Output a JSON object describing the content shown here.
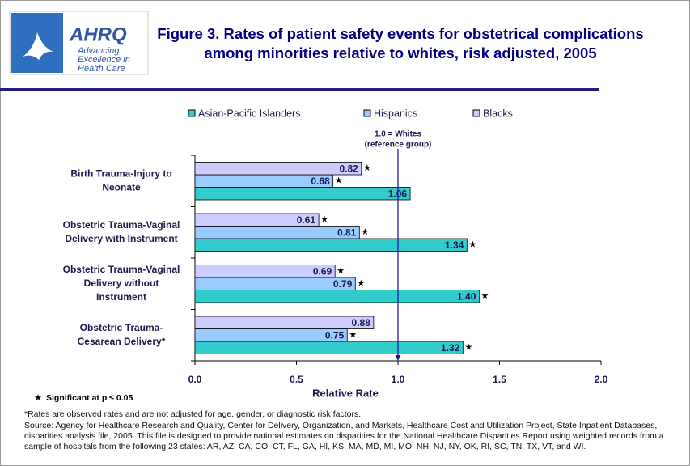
{
  "logo": {
    "name": "AHRQ",
    "tagline": [
      "Advancing",
      "Excellence in",
      "Health Care"
    ]
  },
  "chart_data": {
    "type": "hbar",
    "title": [
      "Figure 3. Rates of patient safety events for obstetrical complications",
      "among minorities relative to whites, risk adjusted, 2005"
    ],
    "categories": [
      [
        "Birth Trauma-Injury to",
        "Neonate"
      ],
      [
        "Obstetric Trauma-Vaginal",
        "Delivery with Instrument"
      ],
      [
        "Obstetric Trauma-Vaginal",
        "Delivery without",
        "Instrument"
      ],
      [
        "Obstetric Trauma-",
        "Cesarean Delivery*"
      ]
    ],
    "series": [
      {
        "name": "Asian-Pacific Islanders",
        "color": "#33cccc",
        "values": [
          1.06,
          1.34,
          1.4,
          1.32
        ],
        "value_labels": [
          "1.06",
          "1.34",
          "1.40",
          "1.32"
        ],
        "significant": [
          false,
          true,
          true,
          true
        ]
      },
      {
        "name": "Hispanics",
        "color": "#99ccff",
        "values": [
          0.68,
          0.81,
          0.79,
          0.75
        ],
        "value_labels": [
          "0.68",
          "0.81",
          "0.79",
          "0.75"
        ],
        "significant": [
          true,
          true,
          true,
          true
        ]
      },
      {
        "name": "Blacks",
        "color": "#ccccff",
        "values": [
          0.82,
          0.61,
          0.69,
          0.88
        ],
        "value_labels": [
          "0.82",
          "0.61",
          "0.69",
          "0.88"
        ],
        "significant": [
          true,
          true,
          true,
          false
        ]
      }
    ],
    "xlim": [
      0,
      2
    ],
    "xticks": [
      {
        "value": 0,
        "label": "0.0"
      },
      {
        "value": 0.5,
        "label": "0.5"
      },
      {
        "value": 1,
        "label": "1.0"
      },
      {
        "value": 1.5,
        "label": "1.5"
      },
      {
        "value": 2,
        "label": "2.0"
      }
    ],
    "xlabel": "Relative Rate",
    "reference_line": {
      "value": 1,
      "label": [
        "1.0 = Whites",
        "(reference group)"
      ]
    },
    "significance_symbol": "★",
    "significance_note": "Significant at p ≤ 0.05",
    "footnotes": [
      "*Rates are observed rates and are not adjusted for age, gender, or diagnostic risk factors.",
      "Source: Agency for Healthcare Research and Quality, Center for Delivery, Organization, and Markets, Healthcare Cost and Utilization Project, State Inpatient Databases, disparities analysis file, 2005. This file is designed to provide national estimates on disparities for the National Healthcare Disparities Report using weighted records from a sample of hospitals from the following 23 states: AR, AZ, CA, CO, CT, FL, GA, HI, KS, MA, MD, MI, MO, NH, NJ, NY, OK, RI, SC, TN, TX, VT, and WI."
    ]
  }
}
